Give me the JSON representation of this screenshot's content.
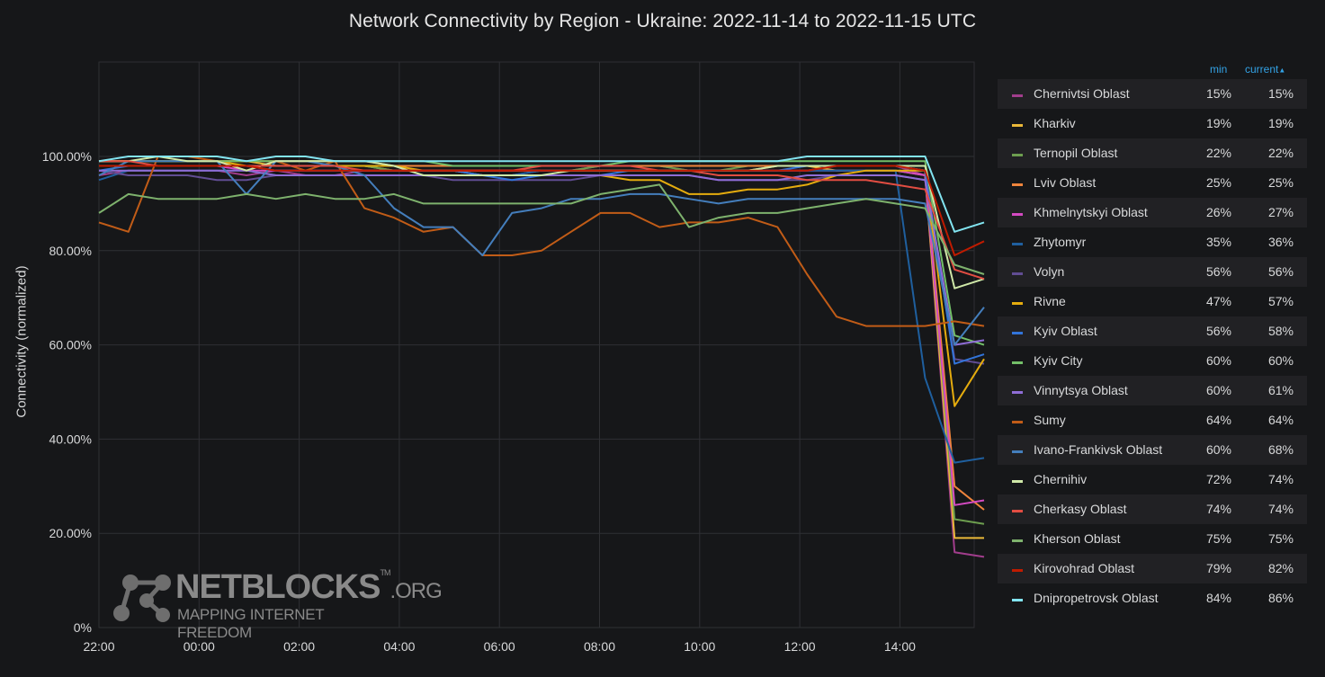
{
  "chart_data": {
    "type": "line",
    "title": "Network Connectivity by Region - Ukraine: 2022-11-14 to 2022-11-15 UTC",
    "ylabel": "Connectivity (normalized)",
    "xlabel": "",
    "x_ticks": [
      "22:00",
      "00:00",
      "02:00",
      "04:00",
      "06:00",
      "08:00",
      "10:00",
      "12:00",
      "14:00"
    ],
    "y_ticks": [
      "0%",
      "20.00%",
      "40.00%",
      "60.00%",
      "80.00%",
      "100.00%"
    ],
    "ylim": [
      0,
      120
    ],
    "grid": true,
    "legend_placement": "right",
    "legend_columns": [
      "min",
      "current"
    ],
    "series": [
      {
        "name": "Chernivtsi Oblast",
        "color": "#a13d8c",
        "min": "15%",
        "current": "15%",
        "values": [
          96,
          97,
          97,
          97,
          97,
          96,
          97,
          96,
          96,
          97,
          97,
          97,
          97,
          96,
          96,
          97,
          97,
          98,
          98,
          98,
          97,
          97,
          97,
          97,
          97,
          98,
          98,
          98,
          96,
          16,
          15
        ]
      },
      {
        "name": "Kharkiv",
        "color": "#eab839",
        "min": "19%",
        "current": "19%",
        "values": [
          99,
          99,
          99,
          99,
          99,
          99,
          98,
          98,
          98,
          98,
          97,
          97,
          97,
          97,
          97,
          97,
          97,
          97,
          97,
          97,
          97,
          97,
          97,
          98,
          98,
          97,
          97,
          97,
          96,
          19,
          19
        ]
      },
      {
        "name": "Ternopil Oblast",
        "color": "#6d9e4f",
        "min": "22%",
        "current": "22%",
        "values": [
          98,
          98,
          98,
          98,
          98,
          98,
          98,
          98,
          98,
          98,
          97,
          97,
          97,
          97,
          97,
          97,
          97,
          98,
          98,
          98,
          97,
          97,
          98,
          98,
          98,
          98,
          98,
          98,
          97,
          23,
          22
        ]
      },
      {
        "name": "Lviv Oblast",
        "color": "#ef843c",
        "min": "25%",
        "current": "25%",
        "values": [
          99,
          99,
          99,
          99,
          99,
          99,
          99,
          99,
          99,
          99,
          98,
          98,
          98,
          98,
          98,
          98,
          98,
          98,
          98,
          98,
          98,
          98,
          98,
          98,
          98,
          98,
          98,
          98,
          97,
          30,
          25
        ]
      },
      {
        "name": "Khmelnytskyi Oblast",
        "color": "#d44ac2",
        "min": "26%",
        "current": "27%",
        "values": [
          98,
          98,
          98,
          98,
          98,
          97,
          97,
          97,
          97,
          97,
          97,
          97,
          97,
          97,
          97,
          97,
          97,
          97,
          97,
          97,
          97,
          97,
          97,
          97,
          97,
          97,
          97,
          97,
          96,
          26,
          27
        ]
      },
      {
        "name": "Zhytomyr",
        "color": "#1f5f9e",
        "min": "35%",
        "current": "36%",
        "values": [
          95,
          97,
          97,
          97,
          97,
          97,
          96,
          96,
          96,
          96,
          96,
          96,
          96,
          96,
          96,
          97,
          97,
          97,
          97,
          97,
          97,
          97,
          97,
          97,
          97,
          97,
          97,
          97,
          53,
          35,
          36
        ]
      },
      {
        "name": "Volyn",
        "color": "#614d93",
        "min": "56%",
        "current": "56%",
        "values": [
          97,
          96,
          96,
          96,
          95,
          95,
          96,
          96,
          96,
          96,
          96,
          96,
          95,
          95,
          95,
          95,
          95,
          96,
          96,
          96,
          96,
          95,
          95,
          95,
          95,
          96,
          96,
          96,
          95,
          57,
          56
        ]
      },
      {
        "name": "Rivne",
        "color": "#e5ac0e",
        "min": "47%",
        "current": "57%",
        "values": [
          99,
          99,
          99,
          99,
          99,
          98,
          98,
          98,
          98,
          98,
          98,
          97,
          97,
          96,
          96,
          96,
          96,
          96,
          95,
          95,
          92,
          92,
          93,
          93,
          94,
          96,
          97,
          97,
          97,
          47,
          57
        ]
      },
      {
        "name": "Kyiv Oblast",
        "color": "#3274d9",
        "min": "56%",
        "current": "58%",
        "values": [
          97,
          98,
          98,
          98,
          98,
          98,
          97,
          97,
          97,
          97,
          97,
          97,
          97,
          96,
          95,
          96,
          96,
          96,
          97,
          97,
          97,
          97,
          97,
          97,
          98,
          98,
          98,
          98,
          97,
          56,
          58
        ]
      },
      {
        "name": "Kyiv City",
        "color": "#73bf69",
        "min": "60%",
        "current": "60%",
        "values": [
          99,
          99,
          99,
          99,
          99,
          99,
          99,
          99,
          99,
          99,
          99,
          99,
          98,
          98,
          98,
          98,
          98,
          98,
          99,
          99,
          99,
          99,
          99,
          99,
          99,
          99,
          99,
          99,
          99,
          62,
          60
        ]
      },
      {
        "name": "Vinnytsya Oblast",
        "color": "#8f6dd6",
        "min": "60%",
        "current": "61%",
        "values": [
          97,
          97,
          97,
          97,
          97,
          97,
          96,
          96,
          96,
          96,
          96,
          96,
          96,
          96,
          96,
          96,
          96,
          96,
          96,
          96,
          96,
          95,
          95,
          95,
          96,
          96,
          96,
          96,
          95,
          60,
          61
        ]
      },
      {
        "name": "Sumy",
        "color": "#c15c17",
        "min": "64%",
        "current": "64%",
        "values": [
          86,
          84,
          100,
          100,
          99,
          97,
          99,
          97,
          99,
          89,
          87,
          84,
          85,
          79,
          79,
          80,
          84,
          88,
          88,
          85,
          86,
          86,
          87,
          85,
          75,
          66,
          64,
          64,
          64,
          65,
          64
        ]
      },
      {
        "name": "Ivano-Frankivsk Oblast",
        "color": "#447ebc",
        "min": "60%",
        "current": "68%",
        "values": [
          96,
          99,
          99,
          99,
          99,
          92,
          99,
          99,
          98,
          96,
          89,
          85,
          85,
          79,
          88,
          89,
          91,
          91,
          92,
          92,
          91,
          90,
          91,
          91,
          91,
          91,
          91,
          91,
          90,
          60,
          68
        ]
      },
      {
        "name": "Chernihiv",
        "color": "#cfe8a8",
        "min": "72%",
        "current": "74%",
        "values": [
          99,
          99,
          100,
          99,
          99,
          97,
          99,
          99,
          99,
          99,
          98,
          96,
          96,
          96,
          96,
          96,
          97,
          97,
          97,
          97,
          97,
          97,
          97,
          98,
          98,
          98,
          98,
          98,
          98,
          72,
          74
        ]
      },
      {
        "name": "Cherkasy Oblast",
        "color": "#e24d42",
        "min": "74%",
        "current": "74%",
        "values": [
          99,
          99,
          98,
          98,
          98,
          98,
          98,
          98,
          98,
          97,
          97,
          97,
          97,
          97,
          97,
          98,
          98,
          98,
          98,
          97,
          97,
          96,
          96,
          96,
          95,
          95,
          95,
          94,
          93,
          76,
          74
        ]
      },
      {
        "name": "Kherson Oblast",
        "color": "#7eb26d",
        "min": "75%",
        "current": "75%",
        "values": [
          88,
          92,
          91,
          91,
          91,
          92,
          91,
          92,
          91,
          91,
          92,
          90,
          90,
          90,
          90,
          90,
          90,
          92,
          93,
          94,
          85,
          87,
          88,
          88,
          89,
          90,
          91,
          90,
          89,
          77,
          75
        ]
      },
      {
        "name": "Kirovohrad Oblast",
        "color": "#bf1b00",
        "min": "79%",
        "current": "82%",
        "values": [
          98,
          98,
          98,
          98,
          98,
          98,
          97,
          97,
          97,
          97,
          97,
          97,
          97,
          97,
          97,
          97,
          97,
          97,
          97,
          97,
          97,
          97,
          97,
          97,
          97,
          98,
          98,
          98,
          97,
          79,
          82
        ]
      },
      {
        "name": "Dnipropetrovsk Oblast",
        "color": "#82e4f0",
        "min": "84%",
        "current": "86%",
        "values": [
          99,
          100,
          100,
          100,
          100,
          99,
          100,
          100,
          99,
          99,
          99,
          99,
          99,
          99,
          99,
          99,
          99,
          99,
          99,
          99,
          99,
          99,
          99,
          99,
          100,
          100,
          100,
          100,
          100,
          84,
          86
        ]
      }
    ]
  },
  "logo": {
    "word": "NETBLOCKS",
    "tm": "TM",
    "tld": ".ORG",
    "tagline": "MAPPING INTERNET FREEDOM"
  }
}
